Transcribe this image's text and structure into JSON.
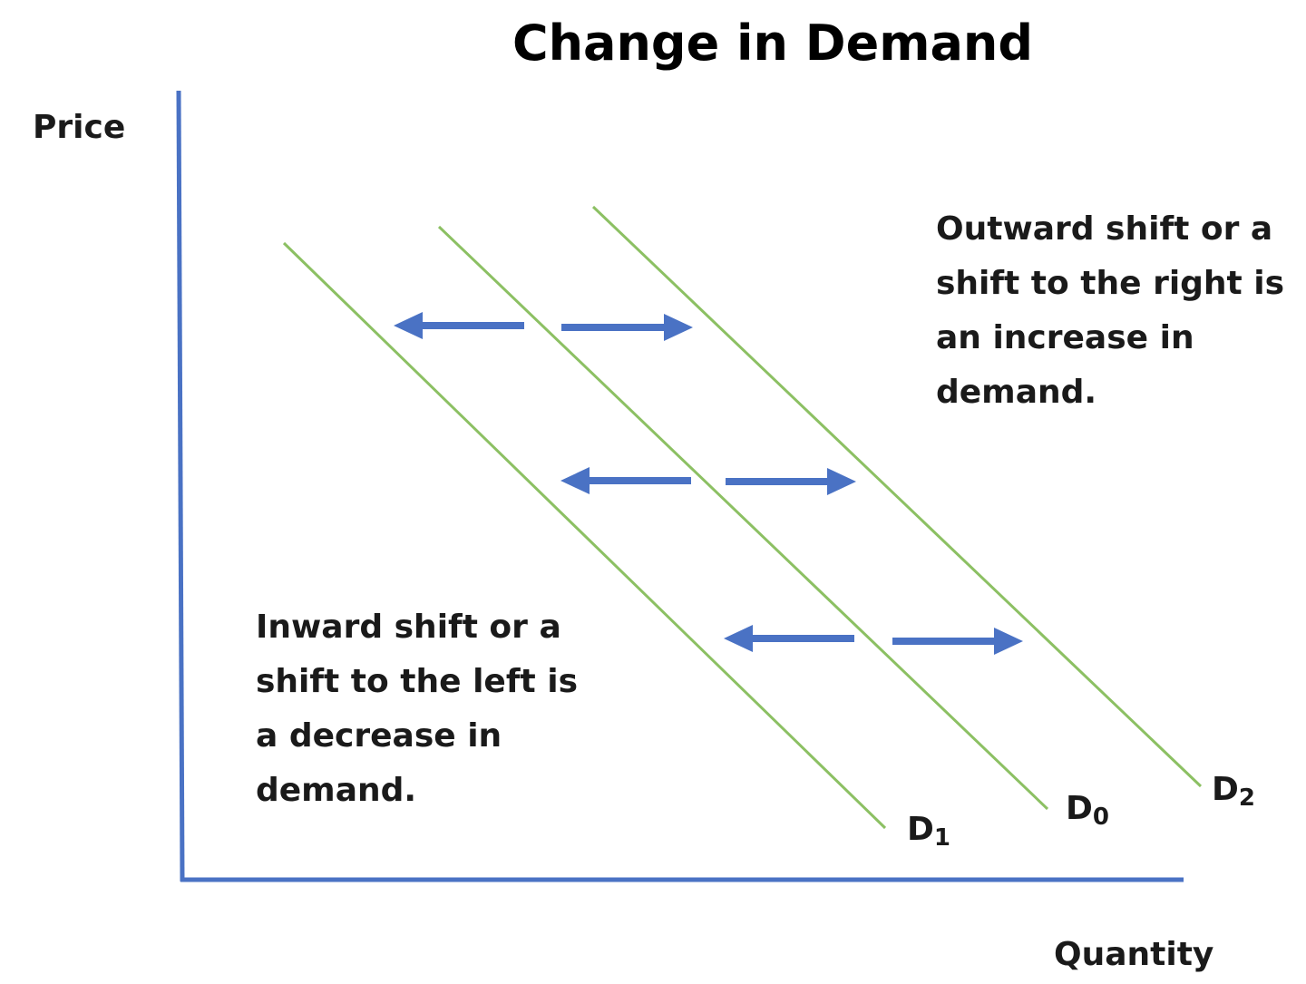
{
  "title": "Change in Demand",
  "axes": {
    "y_label": "Price",
    "x_label": "Quantity"
  },
  "curves": [
    {
      "id": "d1",
      "letter": "D",
      "subscript": "1"
    },
    {
      "id": "d0",
      "letter": "D",
      "subscript": "0"
    },
    {
      "id": "d2",
      "letter": "D",
      "subscript": "2"
    }
  ],
  "notes": {
    "increase": {
      "lines": [
        "Outward shift or a",
        "shift to the right is",
        "an increase in",
        "demand."
      ]
    },
    "decrease": {
      "lines": [
        "Inward shift or a",
        "shift to the left is",
        "a decrease in",
        "demand."
      ]
    }
  },
  "colors": {
    "axis": "#4a72c4",
    "curve": "#8cc063",
    "arrow": "#4a72c4",
    "text": "#1a1a1a"
  }
}
